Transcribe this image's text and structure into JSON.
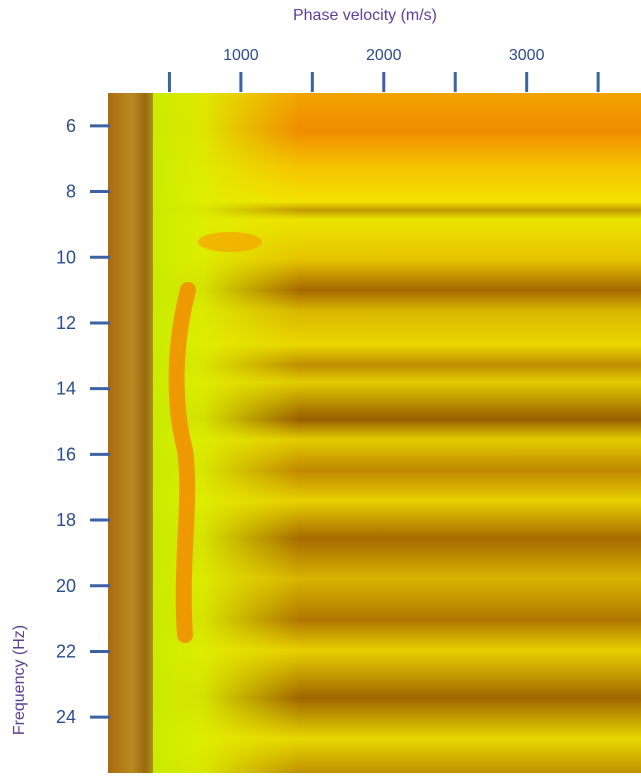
{
  "chart_data": {
    "type": "heatmap",
    "x_label": "Phase velocity (m/s)",
    "y_label": "Frequency (Hz)",
    "x_axis_position": "top",
    "y_inverted": true,
    "xlim": [
      70,
      3800
    ],
    "xticks": [
      1000,
      2000,
      3000
    ],
    "x_minor_ticks": [
      500,
      1500,
      2500,
      3500
    ],
    "ylim": [
      5,
      25.7
    ],
    "yticks": [
      6,
      8,
      10,
      12,
      14,
      16,
      18,
      20,
      22,
      24
    ],
    "tick_color": "#3d62a3",
    "label_color": "#5b3f99",
    "tick_label_color": "#2c4d8c"
  }
}
